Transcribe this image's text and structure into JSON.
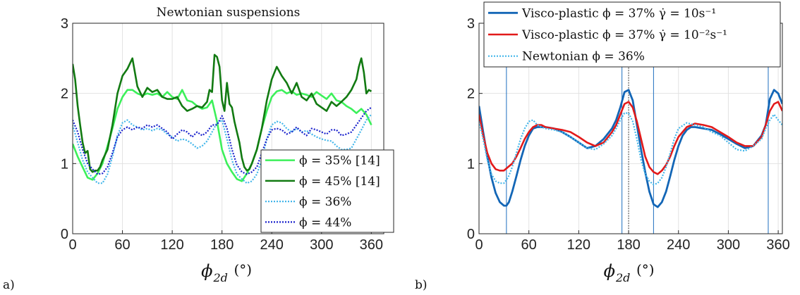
{
  "panel_labels": {
    "a": "a)",
    "b": "b)"
  },
  "chart_data": [
    {
      "panel": "a",
      "type": "line",
      "title": "Newtonian suspensions",
      "xlabel": "ϕ2d (°)",
      "xlabel_main": "ϕ",
      "xlabel_sub": "2d",
      "xlabel_unit": "(°)",
      "ylabel": "",
      "xlim": [
        0,
        375
      ],
      "ylim": [
        0,
        3
      ],
      "xticks": [
        "0",
        "60",
        "120",
        "180",
        "240",
        "300",
        "360"
      ],
      "yticks": [
        "0",
        "1",
        "2",
        "3"
      ],
      "grid": true,
      "legend_position": "bottom-right",
      "series": [
        {
          "name": "ϕ = 35% [14]",
          "color": "#3cf05a",
          "dash": "solid",
          "width": 2.6,
          "x": [
            0,
            6,
            12,
            18,
            24,
            30,
            36,
            42,
            48,
            54,
            60,
            66,
            72,
            78,
            84,
            90,
            96,
            102,
            108,
            114,
            120,
            126,
            132,
            138,
            144,
            150,
            156,
            162,
            168,
            174,
            180,
            186,
            192,
            198,
            204,
            210,
            216,
            222,
            228,
            234,
            240,
            246,
            252,
            258,
            264,
            270,
            276,
            282,
            288,
            294,
            300,
            306,
            312,
            318,
            324,
            330,
            336,
            342,
            348,
            354,
            360
          ],
          "y": [
            1.28,
            1.1,
            0.95,
            0.8,
            0.77,
            0.86,
            1.0,
            1.25,
            1.5,
            1.78,
            1.95,
            2.05,
            2.05,
            2.0,
            1.97,
            2.0,
            1.98,
            2.0,
            1.95,
            2.02,
            1.95,
            1.92,
            2.05,
            1.9,
            1.88,
            1.82,
            1.78,
            1.8,
            1.9,
            1.6,
            1.2,
            1.0,
            0.88,
            0.78,
            0.75,
            0.86,
            1.0,
            1.2,
            1.5,
            1.75,
            1.95,
            2.03,
            2.05,
            2.0,
            2.03,
            1.98,
            2.0,
            1.98,
            1.95,
            2.02,
            1.97,
            1.92,
            2.0,
            1.9,
            1.88,
            1.82,
            1.78,
            1.72,
            1.78,
            1.7,
            1.55
          ]
        },
        {
          "name": "ϕ = 45% [14]",
          "color": "#127a12",
          "dash": "solid",
          "width": 2.6,
          "x": [
            0,
            3,
            6,
            9,
            12,
            15,
            18,
            21,
            24,
            27,
            30,
            33,
            36,
            42,
            48,
            54,
            60,
            66,
            72,
            78,
            84,
            90,
            96,
            102,
            108,
            114,
            120,
            126,
            132,
            138,
            144,
            150,
            156,
            162,
            165,
            168,
            171,
            174,
            177,
            180,
            183,
            186,
            189,
            192,
            195,
            198,
            201,
            204,
            207,
            210,
            213,
            216,
            222,
            228,
            234,
            240,
            246,
            252,
            258,
            264,
            270,
            276,
            282,
            288,
            294,
            300,
            306,
            312,
            318,
            324,
            330,
            336,
            342,
            345,
            348,
            351,
            354,
            357,
            360
          ],
          "y": [
            2.42,
            2.2,
            1.82,
            1.55,
            1.3,
            1.15,
            1.18,
            0.92,
            0.88,
            0.9,
            0.9,
            0.95,
            1.05,
            1.2,
            1.55,
            2.0,
            2.25,
            2.35,
            2.5,
            2.1,
            1.95,
            2.08,
            2.02,
            2.05,
            1.95,
            1.92,
            1.92,
            1.95,
            1.82,
            1.75,
            1.78,
            1.82,
            1.8,
            1.88,
            2.05,
            2.02,
            2.55,
            2.52,
            2.38,
            1.9,
            1.75,
            2.15,
            1.85,
            1.8,
            1.6,
            1.45,
            1.3,
            1.08,
            0.95,
            0.9,
            0.92,
            1.0,
            1.2,
            1.5,
            1.9,
            2.2,
            2.38,
            2.25,
            2.15,
            2.0,
            2.15,
            1.95,
            1.9,
            2.0,
            1.85,
            1.8,
            1.75,
            1.88,
            1.82,
            1.88,
            1.95,
            2.05,
            2.2,
            2.38,
            2.5,
            2.3,
            2.0,
            2.05,
            2.03
          ]
        },
        {
          "name": "ϕ = 36%",
          "color": "#43b6ea",
          "dash": "dot",
          "width": 2.2,
          "x": [
            0,
            6,
            12,
            18,
            24,
            30,
            36,
            42,
            48,
            54,
            60,
            66,
            72,
            78,
            84,
            90,
            96,
            102,
            108,
            114,
            120,
            126,
            132,
            138,
            144,
            150,
            156,
            162,
            168,
            174,
            180,
            186,
            192,
            198,
            204,
            210,
            216,
            222,
            228,
            234,
            240,
            246,
            252,
            258,
            264,
            270,
            276,
            282,
            288,
            294,
            300,
            306,
            312,
            318,
            324,
            330,
            336,
            342,
            348,
            354,
            360
          ],
          "y": [
            1.55,
            1.3,
            1.05,
            0.88,
            0.8,
            0.72,
            0.72,
            0.85,
            1.1,
            1.4,
            1.58,
            1.62,
            1.55,
            1.52,
            1.48,
            1.5,
            1.47,
            1.5,
            1.48,
            1.42,
            1.38,
            1.32,
            1.35,
            1.33,
            1.28,
            1.22,
            1.25,
            1.32,
            1.45,
            1.58,
            1.62,
            1.35,
            1.05,
            0.85,
            0.78,
            0.72,
            0.75,
            0.85,
            1.05,
            1.35,
            1.55,
            1.6,
            1.58,
            1.5,
            1.45,
            1.5,
            1.45,
            1.47,
            1.42,
            1.38,
            1.35,
            1.33,
            1.32,
            1.25,
            1.2,
            1.2,
            1.22,
            1.35,
            1.48,
            1.62,
            1.7
          ]
        },
        {
          "name": "ϕ = 44%",
          "color": "#1a22cc",
          "dash": "dot",
          "width": 2.2,
          "x": [
            0,
            6,
            12,
            18,
            24,
            30,
            36,
            42,
            48,
            54,
            60,
            66,
            72,
            78,
            84,
            90,
            96,
            102,
            108,
            114,
            120,
            126,
            132,
            138,
            144,
            150,
            156,
            162,
            168,
            174,
            180,
            186,
            192,
            198,
            204,
            210,
            216,
            222,
            228,
            234,
            240,
            246,
            252,
            258,
            264,
            270,
            276,
            282,
            288,
            294,
            300,
            306,
            312,
            318,
            324,
            330,
            336,
            342,
            348,
            354,
            360
          ],
          "y": [
            1.62,
            1.45,
            1.2,
            1.0,
            0.92,
            0.85,
            0.86,
            0.95,
            1.15,
            1.38,
            1.48,
            1.52,
            1.48,
            1.52,
            1.5,
            1.55,
            1.52,
            1.55,
            1.5,
            1.45,
            1.35,
            1.42,
            1.48,
            1.45,
            1.38,
            1.45,
            1.4,
            1.45,
            1.55,
            1.55,
            1.68,
            1.5,
            1.2,
            0.98,
            0.88,
            0.85,
            0.88,
            0.95,
            1.15,
            1.35,
            1.48,
            1.5,
            1.48,
            1.42,
            1.45,
            1.52,
            1.45,
            1.4,
            1.5,
            1.48,
            1.45,
            1.42,
            1.48,
            1.48,
            1.4,
            1.42,
            1.45,
            1.55,
            1.65,
            1.75,
            1.8
          ]
        }
      ]
    },
    {
      "panel": "b",
      "type": "line",
      "title": "",
      "xlabel": "ϕ2d (°)",
      "xlabel_main": "ϕ",
      "xlabel_sub": "2d",
      "xlabel_unit": "(°)",
      "ylabel": "",
      "xlim": [
        0,
        365
      ],
      "ylim": [
        0,
        3
      ],
      "xticks": [
        "0",
        "60",
        "120",
        "180",
        "240",
        "300",
        "360"
      ],
      "yticks": [
        "0",
        "1",
        "2",
        "3"
      ],
      "grid": true,
      "legend_position": "top-left",
      "vlines_solid": [
        33,
        172,
        210,
        348
      ],
      "vlines_dotted": [
        180
      ],
      "series": [
        {
          "name": "Visco-plastic ϕ = 37% γ̇ = 10s⁻¹",
          "color": "#1366b6",
          "dash": "solid",
          "width": 2.8,
          "x": [
            0,
            5,
            10,
            15,
            20,
            25,
            30,
            33,
            36,
            40,
            45,
            50,
            55,
            60,
            65,
            70,
            80,
            90,
            100,
            110,
            120,
            130,
            140,
            150,
            160,
            165,
            170,
            175,
            180,
            185,
            190,
            195,
            200,
            205,
            210,
            215,
            220,
            225,
            230,
            235,
            240,
            245,
            250,
            255,
            260,
            270,
            280,
            290,
            300,
            310,
            320,
            330,
            340,
            345,
            350,
            355,
            360,
            365
          ],
          "y": [
            1.82,
            1.45,
            1.1,
            0.8,
            0.58,
            0.45,
            0.4,
            0.4,
            0.45,
            0.6,
            0.82,
            1.05,
            1.25,
            1.4,
            1.5,
            1.52,
            1.52,
            1.5,
            1.45,
            1.38,
            1.3,
            1.22,
            1.25,
            1.35,
            1.5,
            1.62,
            1.8,
            2.02,
            2.05,
            1.9,
            1.55,
            1.2,
            0.88,
            0.6,
            0.42,
            0.38,
            0.45,
            0.6,
            0.82,
            1.05,
            1.25,
            1.4,
            1.48,
            1.52,
            1.52,
            1.5,
            1.48,
            1.42,
            1.35,
            1.28,
            1.22,
            1.25,
            1.4,
            1.55,
            1.92,
            2.05,
            2.0,
            1.85
          ]
        },
        {
          "name": "Visco-plastic ϕ = 37% γ̇ = 10⁻²s⁻¹",
          "color": "#e21a1a",
          "dash": "solid",
          "width": 2.6,
          "x": [
            0,
            5,
            10,
            15,
            20,
            25,
            30,
            35,
            40,
            45,
            50,
            55,
            60,
            65,
            70,
            75,
            80,
            90,
            100,
            110,
            120,
            130,
            140,
            150,
            160,
            165,
            170,
            175,
            180,
            185,
            190,
            195,
            200,
            205,
            210,
            215,
            220,
            225,
            230,
            235,
            240,
            250,
            260,
            270,
            280,
            290,
            300,
            310,
            320,
            330,
            340,
            345,
            350,
            355,
            360,
            365
          ],
          "y": [
            1.7,
            1.4,
            1.15,
            1.0,
            0.92,
            0.9,
            0.9,
            0.95,
            1.0,
            1.1,
            1.22,
            1.35,
            1.45,
            1.52,
            1.55,
            1.55,
            1.52,
            1.5,
            1.48,
            1.45,
            1.38,
            1.3,
            1.25,
            1.3,
            1.45,
            1.55,
            1.7,
            1.85,
            1.88,
            1.8,
            1.6,
            1.35,
            1.1,
            0.95,
            0.88,
            0.85,
            0.9,
            0.98,
            1.1,
            1.25,
            1.38,
            1.52,
            1.57,
            1.55,
            1.52,
            1.45,
            1.38,
            1.3,
            1.25,
            1.25,
            1.38,
            1.55,
            1.75,
            1.85,
            1.88,
            1.75
          ]
        },
        {
          "name": "Newtonian ϕ = 36%",
          "color": "#43b6ea",
          "dash": "dot",
          "width": 2.2,
          "x": [
            0,
            5,
            10,
            15,
            20,
            25,
            30,
            35,
            40,
            45,
            50,
            55,
            60,
            65,
            70,
            75,
            80,
            90,
            100,
            110,
            120,
            130,
            140,
            150,
            160,
            165,
            170,
            175,
            180,
            185,
            190,
            195,
            200,
            205,
            210,
            215,
            220,
            225,
            230,
            235,
            240,
            250,
            260,
            270,
            280,
            290,
            300,
            310,
            320,
            330,
            340,
            345,
            350,
            355,
            360,
            365
          ],
          "y": [
            1.6,
            1.35,
            1.05,
            0.85,
            0.75,
            0.72,
            0.72,
            0.8,
            0.95,
            1.15,
            1.35,
            1.5,
            1.6,
            1.62,
            1.55,
            1.52,
            1.5,
            1.48,
            1.45,
            1.38,
            1.3,
            1.22,
            1.2,
            1.28,
            1.4,
            1.5,
            1.62,
            1.72,
            1.72,
            1.6,
            1.35,
            1.05,
            0.85,
            0.75,
            0.7,
            0.72,
            0.8,
            0.95,
            1.15,
            1.35,
            1.5,
            1.58,
            1.55,
            1.52,
            1.45,
            1.4,
            1.3,
            1.2,
            1.18,
            1.25,
            1.35,
            1.5,
            1.62,
            1.7,
            1.62,
            1.55
          ]
        }
      ]
    }
  ]
}
